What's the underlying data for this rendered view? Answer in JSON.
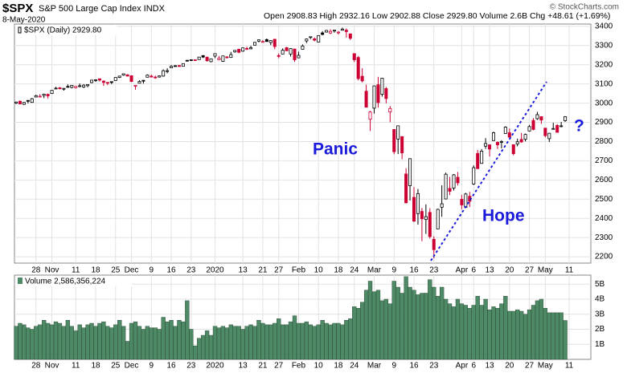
{
  "chart_data": {
    "type": "candlestick",
    "title": "$SPX",
    "subtitle": "S&P 500 Large Cap Index INDX",
    "date": "8-May-2020",
    "stats": "Open 2908.83  High 2932.16  Low 2902.88  Close 2929.80  Volume 2.6B  Chg +48.61 (+1.69%)",
    "credit": "© StockCharts.com",
    "legend": "$SPX (Daily) 2929.80",
    "annotations": [
      "Panic",
      "Hope",
      "?"
    ],
    "up_color": "#000000",
    "down_color": "#cc0033",
    "annotation_color": "#1a1adb",
    "grid": true,
    "ylim": [
      2167,
      3412
    ],
    "yticks": [
      2200,
      2300,
      2400,
      2500,
      2600,
      2700,
      2800,
      2900,
      3000,
      3100,
      3200,
      3300,
      3400
    ],
    "categories": [
      null,
      null,
      null,
      null,
      null,
      "28",
      null,
      null,
      null,
      "Nov",
      null,
      null,
      null,
      null,
      null,
      "11",
      null,
      null,
      null,
      null,
      "18",
      null,
      null,
      null,
      null,
      "25",
      null,
      null,
      null,
      "Dec",
      null,
      null,
      null,
      null,
      "9",
      null,
      null,
      null,
      null,
      "16",
      null,
      null,
      null,
      null,
      "23",
      null,
      null,
      null,
      null,
      null,
      "2020",
      null,
      null,
      null,
      null,
      null,
      null,
      "13",
      null,
      null,
      null,
      null,
      "21",
      null,
      null,
      null,
      "27",
      null,
      null,
      null,
      null,
      "Feb",
      null,
      null,
      null,
      null,
      "10",
      null,
      null,
      null,
      null,
      "18",
      null,
      null,
      null,
      "24",
      null,
      null,
      null,
      null,
      "Mar",
      null,
      null,
      null,
      null,
      "9",
      null,
      null,
      null,
      null,
      "16",
      null,
      null,
      null,
      null,
      "23",
      null,
      null,
      null,
      null,
      null,
      null,
      "Apr",
      null,
      null,
      "6",
      null,
      null,
      null,
      "13",
      null,
      null,
      null,
      null,
      "20",
      null,
      null,
      null,
      null,
      "27",
      null,
      null,
      null,
      "May",
      null,
      null,
      null,
      null,
      null,
      "11"
    ],
    "open": [
      3000,
      3010,
      2994,
      3014,
      3004,
      3032,
      3036,
      3040,
      3046,
      3050,
      3078,
      3080,
      3075,
      3087,
      3082,
      3081,
      3089,
      3084,
      3091,
      3107,
      3118,
      3127,
      3115,
      3108,
      3112,
      3118,
      3134,
      3146,
      3148,
      3143,
      3088,
      3104,
      3119,
      3135,
      3141,
      3136,
      3136,
      3141,
      3166,
      3184,
      3195,
      3196,
      3192,
      3223,
      3226,
      3226,
      3227,
      3248,
      3240,
      3216,
      3245,
      3226,
      3218,
      3241,
      3238,
      3267,
      3281,
      3271,
      3285,
      3283,
      3302,
      3323,
      3321,
      3331,
      3316,
      3333,
      3248,
      3256,
      3289,
      3256,
      3282,
      3236,
      3281,
      3324,
      3344,
      3335,
      3318,
      3366,
      3370,
      3365,
      3378,
      3369,
      3380,
      3380,
      3361,
      3258,
      3238,
      3140,
      3062,
      2916,
      2974,
      3096,
      3046,
      3076,
      2954,
      2863,
      2813,
      2826,
      2631,
      2570,
      2509,
      2425,
      2436,
      2394,
      2431,
      2291,
      2345,
      2458,
      2501,
      2556,
      2558,
      2614,
      2499,
      2458,
      2515,
      2579,
      2738,
      2686,
      2776,
      2783,
      2805,
      2796,
      2799,
      2842,
      2846,
      2784,
      2788,
      2811,
      2812,
      2855,
      2910,
      2919,
      2930,
      2870,
      2815,
      2868,
      2884,
      2879,
      2908.83,
      null
    ],
    "high": [
      3008,
      3014,
      3005,
      3016,
      3027,
      3044,
      3047,
      3050,
      3050,
      3067,
      3085,
      3084,
      3079,
      3098,
      3094,
      3088,
      3103,
      3099,
      3098,
      3120,
      3124,
      3128,
      3119,
      3110,
      3113,
      3134,
      3142,
      3154,
      3150,
      3144,
      3094,
      3120,
      3120,
      3150,
      3148,
      3143,
      3144,
      3176,
      3182,
      3198,
      3198,
      3199,
      3206,
      3226,
      3227,
      3226,
      3240,
      3248,
      3240,
      3232,
      3258,
      3246,
      3247,
      3245,
      3267,
      3276,
      3282,
      3288,
      3294,
      3299,
      3317,
      3330,
      3329,
      3337,
      3326,
      3334,
      3259,
      3285,
      3293,
      3286,
      3282,
      3268,
      3306,
      3337,
      3347,
      3342,
      3352,
      3375,
      3381,
      3385,
      3381,
      3375,
      3393,
      3389,
      3361,
      3260,
      3246,
      3182,
      3097,
      2960,
      3091,
      3137,
      3131,
      3084,
      2985,
      2863,
      2883,
      2826,
      2661,
      2711,
      2563,
      2553,
      2454,
      2473,
      2453,
      2306,
      2450,
      2572,
      2638,
      2616,
      2631,
      2642,
      2522,
      2533,
      2538,
      2676,
      2756,
      2761,
      2818,
      2783,
      2851,
      2801,
      2807,
      2880,
      2868,
      2785,
      2815,
      2845,
      2842,
      2887,
      2922,
      2955,
      2930,
      2870,
      2845,
      2898,
      2891,
      2902,
      2932.16,
      null
    ],
    "low": [
      2995,
      2995,
      2991,
      2999,
      3002,
      3032,
      3034,
      3026,
      3024,
      3050,
      3074,
      3072,
      3065,
      3080,
      3077,
      3076,
      3082,
      3079,
      3083,
      3104,
      3111,
      3113,
      3090,
      3094,
      3099,
      3117,
      3131,
      3143,
      3139,
      3110,
      3070,
      3103,
      3102,
      3134,
      3135,
      3127,
      3133,
      3138,
      3156,
      3184,
      3191,
      3190,
      3192,
      3217,
      3222,
      3220,
      3227,
      3235,
      3216,
      3213,
      3235,
      3223,
      3215,
      3233,
      3236,
      3263,
      3260,
      3268,
      3277,
      3281,
      3302,
      3317,
      3316,
      3320,
      3302,
      3281,
      3234,
      3256,
      3271,
      3243,
      3215,
      3236,
      3281,
      3313,
      3334,
      3322,
      3318,
      3354,
      3369,
      3360,
      3367,
      3358,
      3378,
      3341,
      3329,
      3214,
      3119,
      3108,
      2977,
      2855,
      2946,
      2977,
      3034,
      2999,
      2901,
      2734,
      2735,
      2708,
      2478,
      2493,
      2380,
      2367,
      2281,
      2319,
      2295,
      2192,
      2345,
      2408,
      2500,
      2521,
      2545,
      2571,
      2448,
      2456,
      2459,
      2574,
      2657,
      2685,
      2762,
      2722,
      2805,
      2761,
      2765,
      2842,
      2820,
      2728,
      2775,
      2794,
      2801,
      2853,
      2859,
      2913,
      2892,
      2822,
      2798,
      2863,
      2847,
      2874,
      2902.88,
      null
    ],
    "close": [
      3006,
      2996,
      3004,
      3010,
      3023,
      3039,
      3036,
      3047,
      3038,
      3067,
      3078,
      3075,
      3077,
      3085,
      3093,
      3087,
      3091,
      3094,
      3097,
      3120,
      3122,
      3120,
      3108,
      3104,
      3110,
      3134,
      3141,
      3153,
      3141,
      3113,
      3093,
      3113,
      3117,
      3146,
      3136,
      3133,
      3142,
      3169,
      3169,
      3192,
      3192,
      3191,
      3206,
      3221,
      3224,
      3223,
      3240,
      3240,
      3221,
      3231,
      3258,
      3235,
      3246,
      3237,
      3253,
      3275,
      3265,
      3288,
      3283,
      3289,
      3317,
      3330,
      3321,
      3321,
      3326,
      3295,
      3244,
      3276,
      3273,
      3284,
      3226,
      3249,
      3298,
      3334,
      3346,
      3328,
      3352,
      3358,
      3379,
      3374,
      3380,
      3370,
      3386,
      3373,
      3338,
      3226,
      3128,
      3116,
      2979,
      2954,
      3090,
      3003,
      3130,
      3024,
      2972,
      2747,
      2882,
      2741,
      2481,
      2711,
      2386,
      2529,
      2398,
      2409,
      2305,
      2237,
      2447,
      2476,
      2630,
      2541,
      2627,
      2585,
      2470,
      2527,
      2489,
      2664,
      2659,
      2750,
      2790,
      2761,
      2846,
      2783,
      2800,
      2875,
      2823,
      2737,
      2799,
      2798,
      2837,
      2878,
      2863,
      2940,
      2912,
      2831,
      2843,
      2868,
      2848,
      2882,
      2929.8,
      null
    ],
    "volume": {
      "label": "Volume 2,586,356,224",
      "color": "#4f8a66",
      "ylim": [
        0,
        5.6
      ],
      "yticks": [
        {
          "value": 1,
          "label": "1B"
        },
        {
          "value": 2,
          "label": "2B"
        },
        {
          "value": 3,
          "label": "3B"
        },
        {
          "value": 4,
          "label": "4B"
        },
        {
          "value": 5,
          "label": "5B"
        }
      ],
      "values": [
        2.2,
        2.4,
        2.3,
        2.1,
        2.0,
        2.2,
        2.3,
        2.6,
        2.4,
        2.3,
        2.5,
        2.4,
        2.2,
        2.6,
        2.2,
        1.9,
        2.3,
        2.1,
        2.3,
        2.4,
        2.2,
        2.4,
        2.5,
        2.2,
        2.1,
        2.3,
        2.6,
        2.2,
        1.2,
        2.4,
        2.5,
        2.2,
        2.0,
        2.2,
        2.1,
        2.1,
        2.0,
        2.8,
        2.5,
        2.6,
        2.2,
        2.6,
        2.5,
        3.9,
        2.0,
        0.9,
        1.4,
        1.6,
        1.9,
        1.6,
        2.2,
        2.1,
        2.2,
        2.1,
        2.3,
        2.2,
        2.2,
        2.0,
        2.2,
        2.3,
        2.2,
        2.6,
        2.4,
        2.3,
        2.3,
        2.4,
        2.7,
        2.3,
        2.3,
        2.5,
        2.9,
        2.4,
        2.4,
        2.5,
        2.3,
        2.2,
        2.3,
        2.6,
        2.4,
        2.3,
        2.4,
        2.4,
        2.3,
        2.6,
        2.7,
        3.5,
        3.4,
        3.8,
        4.6,
        5.2,
        4.5,
        4.6,
        3.9,
        4.0,
        3.7,
        5.2,
        4.8,
        4.4,
        5.5,
        4.8,
        4.6,
        4.3,
        4.4,
        4.4,
        5.3,
        4.8,
        4.2,
        4.8,
        4.0,
        3.7,
        3.5,
        4.0,
        3.7,
        3.6,
        3.4,
        3.6,
        4.2,
        3.6,
        4.0,
        3.3,
        3.5,
        3.4,
        3.7,
        4.2,
        3.2,
        3.2,
        3.3,
        3.2,
        3.0,
        3.3,
        3.6,
        3.9,
        4.0,
        3.4,
        3.1,
        3.1,
        3.1,
        3.1,
        2.586356224,
        null
      ]
    }
  }
}
